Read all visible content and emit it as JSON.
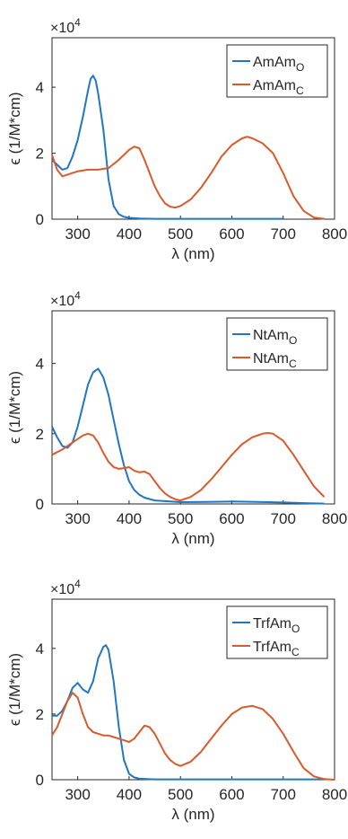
{
  "colors": {
    "open": "#1f77c4",
    "closed": "#d95a2b",
    "axis": "#262626"
  },
  "chart_data": [
    {
      "type": "line",
      "xlabel": "λ (nm)",
      "ylabel": "ϵ (1/M*cm)",
      "multiplier": "×10",
      "multiplier_exp": "4",
      "xlim": [
        250,
        800
      ],
      "ylim": [
        0,
        55000
      ],
      "xticks": [
        300,
        400,
        500,
        600,
        700,
        800
      ],
      "yticks": [
        0,
        20000,
        40000
      ],
      "ytick_labels": [
        "0",
        "2",
        "4"
      ],
      "legend_position": "top-right",
      "series": [
        {
          "name": "AmAm",
          "subscript": "O",
          "color": "#1f77c4",
          "x": [
            250,
            260,
            270,
            280,
            290,
            300,
            310,
            320,
            325,
            330,
            335,
            340,
            350,
            360,
            370,
            380,
            390,
            400,
            420,
            450,
            500,
            550,
            600,
            650,
            700
          ],
          "y": [
            18000,
            16500,
            15000,
            15500,
            19000,
            24000,
            31000,
            39000,
            42500,
            43500,
            42000,
            38000,
            27000,
            12000,
            4000,
            1500,
            700,
            400,
            200,
            100,
            100,
            100,
            100,
            100,
            100
          ]
        },
        {
          "name": "AmAm",
          "subscript": "C",
          "color": "#d95a2b",
          "x": [
            250,
            260,
            270,
            280,
            300,
            320,
            340,
            360,
            380,
            400,
            410,
            420,
            430,
            440,
            450,
            460,
            470,
            480,
            490,
            500,
            520,
            540,
            560,
            580,
            600,
            620,
            630,
            640,
            660,
            680,
            700,
            720,
            740,
            760,
            780
          ],
          "y": [
            19500,
            15000,
            13000,
            13500,
            14500,
            15000,
            15000,
            15500,
            18000,
            21000,
            22000,
            21500,
            18000,
            14000,
            10000,
            7000,
            4800,
            3800,
            3500,
            4000,
            6000,
            9500,
            14000,
            19000,
            22500,
            24500,
            25000,
            24500,
            23000,
            20000,
            14000,
            7000,
            2500,
            500,
            100
          ]
        }
      ]
    },
    {
      "type": "line",
      "xlabel": "λ (nm)",
      "ylabel": "ϵ (1/M*cm)",
      "multiplier": "×10",
      "multiplier_exp": "4",
      "xlim": [
        250,
        800
      ],
      "ylim": [
        0,
        55000
      ],
      "xticks": [
        300,
        400,
        500,
        600,
        700,
        800
      ],
      "yticks": [
        0,
        20000,
        40000
      ],
      "ytick_labels": [
        "0",
        "2",
        "4"
      ],
      "legend_position": "top-right",
      "series": [
        {
          "name": "NtAm",
          "subscript": "O",
          "color": "#1f77c4",
          "x": [
            250,
            260,
            270,
            280,
            290,
            300,
            310,
            320,
            330,
            340,
            350,
            360,
            370,
            380,
            390,
            400,
            410,
            420,
            430,
            450,
            500,
            550,
            600,
            650,
            700,
            750,
            780
          ],
          "y": [
            22000,
            19000,
            16500,
            16000,
            17500,
            22000,
            28000,
            34000,
            37500,
            38500,
            36000,
            31000,
            24000,
            17000,
            11000,
            6500,
            4000,
            2600,
            1800,
            1000,
            500,
            600,
            700,
            600,
            400,
            200,
            100
          ]
        },
        {
          "name": "NtAm",
          "subscript": "C",
          "color": "#d95a2b",
          "x": [
            250,
            270,
            290,
            310,
            320,
            330,
            340,
            350,
            360,
            370,
            380,
            390,
            400,
            410,
            420,
            430,
            440,
            450,
            460,
            470,
            480,
            490,
            500,
            520,
            540,
            560,
            580,
            600,
            620,
            640,
            660,
            670,
            680,
            700,
            720,
            740,
            760,
            780
          ],
          "y": [
            14000,
            15500,
            17500,
            19500,
            20000,
            19500,
            17500,
            14500,
            12000,
            10500,
            10000,
            10200,
            10500,
            9500,
            9000,
            9200,
            8500,
            6500,
            4500,
            3000,
            2000,
            1300,
            1000,
            2000,
            4000,
            7000,
            10500,
            14000,
            17000,
            19000,
            20000,
            20200,
            20000,
            18000,
            14000,
            9500,
            5000,
            2000
          ]
        }
      ]
    },
    {
      "type": "line",
      "xlabel": "λ (nm)",
      "ylabel": "ϵ (1/M*cm)",
      "multiplier": "×10",
      "multiplier_exp": "4",
      "xlim": [
        250,
        800
      ],
      "ylim": [
        0,
        55000
      ],
      "xticks": [
        300,
        400,
        500,
        600,
        700,
        800
      ],
      "yticks": [
        0,
        20000,
        40000
      ],
      "ytick_labels": [
        "0",
        "2",
        "4"
      ],
      "legend_position": "top-right",
      "series": [
        {
          "name": "TrfAm",
          "subscript": "O",
          "color": "#1f77c4",
          "x": [
            250,
            260,
            270,
            280,
            290,
            300,
            310,
            320,
            330,
            340,
            350,
            355,
            360,
            370,
            380,
            390,
            400,
            410,
            420,
            450,
            500,
            550,
            600,
            650,
            700,
            750,
            780
          ],
          "y": [
            19500,
            19500,
            21000,
            24000,
            28000,
            29500,
            27500,
            26500,
            30000,
            37000,
            40500,
            41000,
            39500,
            30000,
            16000,
            6000,
            1800,
            700,
            300,
            100,
            100,
            100,
            100,
            100,
            100,
            100,
            100
          ]
        },
        {
          "name": "TrfAm",
          "subscript": "C",
          "color": "#d95a2b",
          "x": [
            250,
            260,
            270,
            280,
            290,
            300,
            310,
            320,
            330,
            340,
            350,
            360,
            370,
            380,
            390,
            400,
            410,
            420,
            430,
            440,
            450,
            460,
            470,
            480,
            490,
            500,
            520,
            540,
            560,
            580,
            600,
            620,
            640,
            660,
            680,
            700,
            720,
            740,
            760,
            780,
            800
          ],
          "y": [
            13500,
            16000,
            20000,
            24000,
            26500,
            25000,
            20000,
            16000,
            14500,
            14000,
            13500,
            13500,
            13000,
            12500,
            12000,
            11500,
            12500,
            14500,
            16500,
            16000,
            14000,
            11000,
            8000,
            6000,
            4800,
            4200,
            5500,
            8500,
            12500,
            16500,
            20000,
            22000,
            22500,
            21500,
            18500,
            14000,
            8500,
            3500,
            1000,
            200,
            0
          ]
        }
      ]
    }
  ]
}
